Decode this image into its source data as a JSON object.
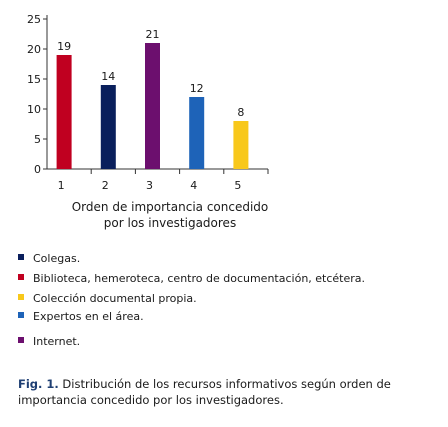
{
  "chart_data": {
    "type": "bar",
    "categories": [
      "1",
      "2",
      "3",
      "4",
      "5"
    ],
    "values": [
      19,
      14,
      21,
      12,
      8
    ],
    "colors": [
      "#c00020",
      "#0a1f5c",
      "#6c0f6e",
      "#1e63b8",
      "#f8c81b"
    ],
    "ylim": [
      0,
      25
    ],
    "yticks": [
      "0",
      "5",
      "10",
      "15",
      "20",
      "25"
    ],
    "ytick_values": [
      0,
      5,
      10,
      15,
      20,
      25
    ],
    "xlabel": "Orden de importancia concedido\npor los investigadores",
    "grid": false,
    "legend_placement": "bottom"
  },
  "legend": [
    {
      "label": "Colegas.",
      "color": "#0a1f5c"
    },
    {
      "label": "Biblioteca,  hemeroteca,  centro   de documentación, etcétera.",
      "color": "#c00020"
    },
    {
      "label": "Colección  documental propia.",
      "color": "#f8c81b"
    },
    {
      "label": "Expertos en el área.",
      "color": "#1e63b8"
    },
    {
      "label": "Internet.",
      "color": "#6c0f6e"
    }
  ],
  "caption": {
    "fig_label": "Fig.  1.",
    "text": " Distribución  de  los  recursos  informativos  según  orden de  importancia  concedido  por  los  investigadores."
  }
}
